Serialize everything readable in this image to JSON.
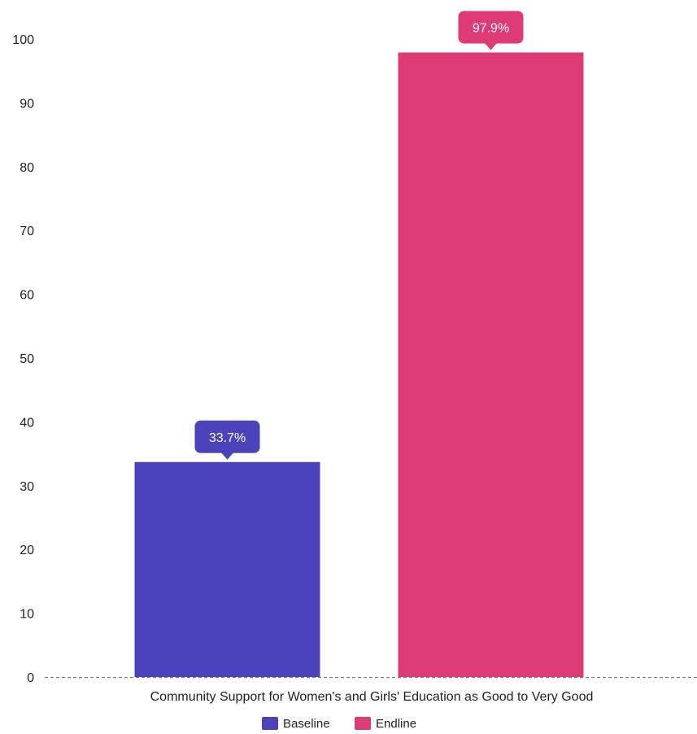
{
  "chart_data": {
    "type": "bar",
    "categories": [
      "Community Support for Women's and Girls' Education as Good to Very Good"
    ],
    "series": [
      {
        "name": "Baseline",
        "values": [
          33.7
        ],
        "color": "#4b43bb",
        "label": "33.7%"
      },
      {
        "name": "Endline",
        "values": [
          97.9
        ],
        "color": "#de3b75",
        "label": "97.9%"
      }
    ],
    "title": "",
    "xlabel": "",
    "ylabel": "",
    "ylim": [
      0,
      100
    ],
    "yticks": [
      0,
      10,
      20,
      30,
      40,
      50,
      60,
      70,
      80,
      90,
      100
    ],
    "grid": false,
    "legend": {
      "position": "bottom-center"
    },
    "baseline_style": "dashed"
  }
}
